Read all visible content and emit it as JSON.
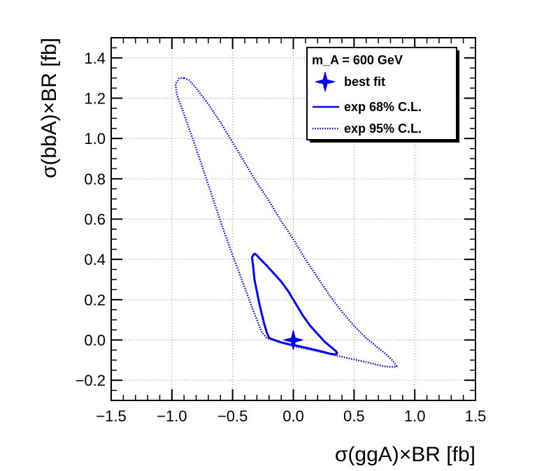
{
  "chart_data": {
    "type": "scatter",
    "xlabel": "σ(ggA)×BR [fb]",
    "ylabel": "σ(bbA)×BR [fb]",
    "xlim": [
      -1.5,
      1.5
    ],
    "ylim": [
      -0.3,
      1.5
    ],
    "x_ticks": [
      -1.5,
      -1.0,
      -0.5,
      0.0,
      0.5,
      1.0,
      1.5
    ],
    "x_tick_labels": [
      "−1.5",
      "−1.0",
      "−0.5",
      "0.0",
      "0.5",
      "1.0",
      "1.5"
    ],
    "y_ticks": [
      -0.2,
      0.0,
      0.2,
      0.4,
      0.6,
      0.8,
      1.0,
      1.2,
      1.4
    ],
    "y_tick_labels": [
      "−0.2",
      "0.0",
      "0.2",
      "0.4",
      "0.6",
      "0.8",
      "1.0",
      "1.2",
      "1.4"
    ],
    "grid": true,
    "legend_position": "top-right",
    "legend_title": "m_A = 600 GeV",
    "colors": {
      "series": "#0000ff",
      "axis": "#000000",
      "grid": "#888888"
    },
    "series": [
      {
        "name": "best fit",
        "kind": "marker",
        "marker": "star",
        "points": [
          [
            0.0,
            0.0
          ]
        ]
      },
      {
        "name": "exp 68% C.L.",
        "kind": "contour",
        "line": "solid",
        "points": [
          [
            -0.32,
            0.43
          ],
          [
            -0.3,
            0.42
          ],
          [
            -0.27,
            0.4
          ],
          [
            -0.22,
            0.37
          ],
          [
            -0.16,
            0.33
          ],
          [
            -0.1,
            0.29
          ],
          [
            -0.04,
            0.24
          ],
          [
            0.02,
            0.18
          ],
          [
            0.08,
            0.12
          ],
          [
            0.14,
            0.07
          ],
          [
            0.2,
            0.03
          ],
          [
            0.26,
            -0.01
          ],
          [
            0.31,
            -0.035
          ],
          [
            0.35,
            -0.055
          ],
          [
            0.36,
            -0.065
          ],
          [
            0.35,
            -0.072
          ],
          [
            0.3,
            -0.068
          ],
          [
            0.24,
            -0.058
          ],
          [
            0.17,
            -0.048
          ],
          [
            0.1,
            -0.038
          ],
          [
            0.04,
            -0.03
          ],
          [
            -0.03,
            -0.022
          ],
          [
            -0.1,
            -0.012
          ],
          [
            -0.17,
            0.003
          ],
          [
            -0.2,
            0.01
          ],
          [
            -0.22,
            0.04
          ],
          [
            -0.24,
            0.08
          ],
          [
            -0.26,
            0.13
          ],
          [
            -0.28,
            0.18
          ],
          [
            -0.3,
            0.24
          ],
          [
            -0.32,
            0.3
          ],
          [
            -0.33,
            0.36
          ],
          [
            -0.34,
            0.41
          ],
          [
            -0.32,
            0.43
          ]
        ]
      },
      {
        "name": "exp 95% C.L.",
        "kind": "contour",
        "line": "dotted",
        "points": [
          [
            -0.9,
            1.3
          ],
          [
            -0.86,
            1.29
          ],
          [
            -0.8,
            1.25
          ],
          [
            -0.7,
            1.17
          ],
          [
            -0.6,
            1.08
          ],
          [
            -0.5,
            0.98
          ],
          [
            -0.4,
            0.88
          ],
          [
            -0.3,
            0.78
          ],
          [
            -0.2,
            0.69
          ],
          [
            -0.1,
            0.59
          ],
          [
            0.0,
            0.5
          ],
          [
            0.1,
            0.4
          ],
          [
            0.2,
            0.31
          ],
          [
            0.3,
            0.22
          ],
          [
            0.4,
            0.14
          ],
          [
            0.5,
            0.07
          ],
          [
            0.6,
            0.01
          ],
          [
            0.7,
            -0.04
          ],
          [
            0.78,
            -0.08
          ],
          [
            0.83,
            -0.11
          ],
          [
            0.85,
            -0.13
          ],
          [
            0.82,
            -0.135
          ],
          [
            0.74,
            -0.13
          ],
          [
            0.6,
            -0.11
          ],
          [
            0.45,
            -0.09
          ],
          [
            0.3,
            -0.07
          ],
          [
            0.15,
            -0.05
          ],
          [
            0.0,
            -0.03
          ],
          [
            -0.12,
            -0.01
          ],
          [
            -0.22,
            0.01
          ],
          [
            -0.26,
            0.04
          ],
          [
            -0.32,
            0.13
          ],
          [
            -0.4,
            0.26
          ],
          [
            -0.5,
            0.42
          ],
          [
            -0.6,
            0.59
          ],
          [
            -0.7,
            0.77
          ],
          [
            -0.8,
            0.95
          ],
          [
            -0.9,
            1.12
          ],
          [
            -0.96,
            1.22
          ],
          [
            -0.97,
            1.27
          ],
          [
            -0.94,
            1.3
          ],
          [
            -0.9,
            1.3
          ]
        ]
      }
    ]
  }
}
